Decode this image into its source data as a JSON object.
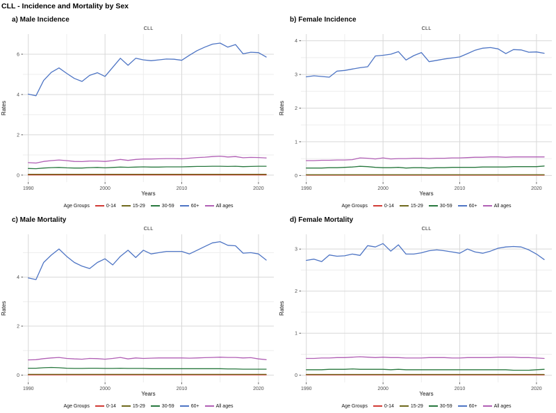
{
  "main_title": "CLL - Incidence and Mortality by Sex",
  "legend": {
    "title": "Age Groups",
    "items": [
      {
        "label": "0-14",
        "color": "#D13A34"
      },
      {
        "label": "15-29",
        "color": "#6E681C"
      },
      {
        "label": "30-59",
        "color": "#27773D"
      },
      {
        "label": "60+",
        "color": "#4D74C4"
      },
      {
        "label": "All ages",
        "color": "#B05EB4"
      }
    ]
  },
  "grid_colors": {
    "minor": "#EDEDED",
    "major": "#D8D8D8",
    "tick": "#333333"
  },
  "years": [
    1990,
    1991,
    1992,
    1993,
    1994,
    1995,
    1996,
    1997,
    1998,
    1999,
    2000,
    2001,
    2002,
    2003,
    2004,
    2005,
    2006,
    2007,
    2008,
    2009,
    2010,
    2011,
    2012,
    2013,
    2014,
    2015,
    2016,
    2017,
    2018,
    2019,
    2020,
    2021
  ],
  "chart_data": [
    {
      "type": "line",
      "panel_label": "a) Male Incidence",
      "title": "CLL",
      "xlabel": "Years",
      "ylabel": "Rates",
      "xlim": [
        1989.3,
        2022.0
      ],
      "ylim": [
        -0.35,
        7.0
      ],
      "xticks": [
        1990,
        2000,
        2010,
        2020
      ],
      "x_minor": [
        1995,
        2005,
        2015
      ],
      "yticks": [
        0,
        2,
        4,
        6
      ],
      "y_minor": [
        1,
        3,
        5
      ],
      "x": [
        1990,
        1991,
        1992,
        1993,
        1994,
        1995,
        1996,
        1997,
        1998,
        1999,
        2000,
        2001,
        2002,
        2003,
        2004,
        2005,
        2006,
        2007,
        2008,
        2009,
        2010,
        2011,
        2012,
        2013,
        2014,
        2015,
        2016,
        2017,
        2018,
        2019,
        2020,
        2021
      ],
      "series": [
        {
          "name": "0-14",
          "values": [
            0.01,
            0.01,
            0.01,
            0.01,
            0.01,
            0.01,
            0.01,
            0.01,
            0.01,
            0.01,
            0.01,
            0.01,
            0.01,
            0.01,
            0.01,
            0.01,
            0.01,
            0.01,
            0.01,
            0.01,
            0.01,
            0.01,
            0.01,
            0.01,
            0.01,
            0.01,
            0.01,
            0.01,
            0.01,
            0.01,
            0.01,
            0.01
          ]
        },
        {
          "name": "15-29",
          "values": [
            0.04,
            0.04,
            0.04,
            0.04,
            0.04,
            0.04,
            0.04,
            0.04,
            0.04,
            0.04,
            0.04,
            0.04,
            0.04,
            0.04,
            0.04,
            0.04,
            0.04,
            0.04,
            0.04,
            0.04,
            0.04,
            0.04,
            0.04,
            0.04,
            0.04,
            0.04,
            0.04,
            0.04,
            0.04,
            0.04,
            0.04,
            0.04
          ]
        },
        {
          "name": "30-59",
          "values": [
            0.33,
            0.32,
            0.35,
            0.37,
            0.38,
            0.36,
            0.35,
            0.35,
            0.37,
            0.38,
            0.36,
            0.38,
            0.4,
            0.39,
            0.4,
            0.41,
            0.4,
            0.4,
            0.41,
            0.41,
            0.41,
            0.42,
            0.43,
            0.43,
            0.44,
            0.44,
            0.43,
            0.44,
            0.42,
            0.43,
            0.44,
            0.44
          ]
        },
        {
          "name": "60+",
          "values": [
            4.02,
            3.94,
            4.7,
            5.1,
            5.32,
            5.05,
            4.8,
            4.65,
            4.95,
            5.08,
            4.9,
            5.35,
            5.8,
            5.45,
            5.8,
            5.72,
            5.68,
            5.72,
            5.76,
            5.75,
            5.7,
            5.95,
            6.18,
            6.35,
            6.5,
            6.55,
            6.35,
            6.48,
            6.02,
            6.1,
            6.08,
            5.86
          ]
        },
        {
          "name": "All ages",
          "values": [
            0.62,
            0.6,
            0.68,
            0.72,
            0.75,
            0.72,
            0.68,
            0.67,
            0.7,
            0.7,
            0.68,
            0.72,
            0.78,
            0.73,
            0.78,
            0.8,
            0.8,
            0.81,
            0.82,
            0.82,
            0.81,
            0.84,
            0.87,
            0.89,
            0.92,
            0.94,
            0.9,
            0.92,
            0.86,
            0.88,
            0.87,
            0.85
          ]
        }
      ]
    },
    {
      "type": "line",
      "panel_label": "b) Female Incidence",
      "title": "CLL",
      "xlabel": "Years",
      "ylabel": "Rates",
      "xlim": [
        1989.3,
        2022.0
      ],
      "ylim": [
        -0.2,
        4.2
      ],
      "xticks": [
        1990,
        2000,
        2010,
        2020
      ],
      "x_minor": [
        1995,
        2005,
        2015
      ],
      "yticks": [
        0,
        1,
        2,
        3,
        4
      ],
      "y_minor": [
        0.5,
        1.5,
        2.5,
        3.5
      ],
      "x": [
        1990,
        1991,
        1992,
        1993,
        1994,
        1995,
        1996,
        1997,
        1998,
        1999,
        2000,
        2001,
        2002,
        2003,
        2004,
        2005,
        2006,
        2007,
        2008,
        2009,
        2010,
        2011,
        2012,
        2013,
        2014,
        2015,
        2016,
        2017,
        2018,
        2019,
        2020,
        2021
      ],
      "series": [
        {
          "name": "0-14",
          "values": [
            0.01,
            0.01,
            0.01,
            0.01,
            0.01,
            0.01,
            0.01,
            0.01,
            0.01,
            0.01,
            0.01,
            0.01,
            0.01,
            0.01,
            0.01,
            0.01,
            0.01,
            0.01,
            0.01,
            0.01,
            0.01,
            0.01,
            0.01,
            0.01,
            0.01,
            0.01,
            0.01,
            0.01,
            0.01,
            0.01,
            0.01,
            0.01
          ]
        },
        {
          "name": "15-29",
          "values": [
            0.02,
            0.02,
            0.02,
            0.02,
            0.02,
            0.02,
            0.02,
            0.02,
            0.02,
            0.02,
            0.02,
            0.02,
            0.02,
            0.02,
            0.02,
            0.02,
            0.02,
            0.02,
            0.02,
            0.02,
            0.02,
            0.02,
            0.02,
            0.02,
            0.02,
            0.02,
            0.02,
            0.02,
            0.02,
            0.02,
            0.02,
            0.02
          ]
        },
        {
          "name": "30-59",
          "values": [
            0.22,
            0.22,
            0.22,
            0.23,
            0.23,
            0.24,
            0.25,
            0.27,
            0.26,
            0.24,
            0.23,
            0.23,
            0.24,
            0.22,
            0.23,
            0.23,
            0.22,
            0.23,
            0.23,
            0.24,
            0.24,
            0.24,
            0.24,
            0.25,
            0.25,
            0.25,
            0.25,
            0.26,
            0.26,
            0.26,
            0.26,
            0.28
          ]
        },
        {
          "name": "60+",
          "values": [
            2.93,
            2.96,
            2.94,
            2.92,
            3.1,
            3.12,
            3.16,
            3.2,
            3.23,
            3.55,
            3.57,
            3.6,
            3.68,
            3.43,
            3.56,
            3.65,
            3.38,
            3.42,
            3.46,
            3.49,
            3.52,
            3.62,
            3.72,
            3.78,
            3.8,
            3.76,
            3.62,
            3.74,
            3.73,
            3.66,
            3.67,
            3.63
          ]
        },
        {
          "name": "All ages",
          "values": [
            0.44,
            0.44,
            0.45,
            0.45,
            0.46,
            0.46,
            0.47,
            0.52,
            0.51,
            0.49,
            0.52,
            0.49,
            0.5,
            0.5,
            0.51,
            0.51,
            0.5,
            0.51,
            0.51,
            0.52,
            0.52,
            0.53,
            0.54,
            0.54,
            0.55,
            0.55,
            0.54,
            0.55,
            0.55,
            0.55,
            0.55,
            0.55
          ]
        }
      ]
    },
    {
      "type": "line",
      "panel_label": "c) Male Mortality",
      "title": "CLL",
      "xlabel": "Years",
      "ylabel": "Rates",
      "xlim": [
        1989.3,
        2022.0
      ],
      "ylim": [
        -0.3,
        5.75
      ],
      "xticks": [
        1990,
        2000,
        2010,
        2020
      ],
      "x_minor": [
        1995,
        2005,
        2015
      ],
      "yticks": [
        0,
        2,
        4
      ],
      "y_minor": [
        1,
        3,
        5
      ],
      "x": [
        1990,
        1991,
        1992,
        1993,
        1994,
        1995,
        1996,
        1997,
        1998,
        1999,
        2000,
        2001,
        2002,
        2003,
        2004,
        2005,
        2006,
        2007,
        2008,
        2009,
        2010,
        2011,
        2012,
        2013,
        2014,
        2015,
        2016,
        2017,
        2018,
        2019,
        2020,
        2021
      ],
      "series": [
        {
          "name": "0-14",
          "values": [
            0.01,
            0.01,
            0.01,
            0.01,
            0.01,
            0.01,
            0.01,
            0.01,
            0.01,
            0.01,
            0.01,
            0.01,
            0.01,
            0.01,
            0.01,
            0.01,
            0.01,
            0.01,
            0.01,
            0.01,
            0.01,
            0.01,
            0.01,
            0.01,
            0.01,
            0.01,
            0.01,
            0.01,
            0.01,
            0.01,
            0.01,
            0.01
          ]
        },
        {
          "name": "15-29",
          "values": [
            0.03,
            0.03,
            0.03,
            0.03,
            0.03,
            0.03,
            0.03,
            0.03,
            0.03,
            0.03,
            0.03,
            0.03,
            0.03,
            0.03,
            0.03,
            0.03,
            0.03,
            0.03,
            0.03,
            0.03,
            0.03,
            0.03,
            0.03,
            0.03,
            0.03,
            0.03,
            0.03,
            0.03,
            0.03,
            0.03,
            0.03,
            0.03
          ]
        },
        {
          "name": "30-59",
          "values": [
            0.28,
            0.28,
            0.3,
            0.31,
            0.3,
            0.28,
            0.27,
            0.27,
            0.28,
            0.28,
            0.27,
            0.27,
            0.28,
            0.27,
            0.27,
            0.27,
            0.26,
            0.26,
            0.26,
            0.26,
            0.26,
            0.26,
            0.26,
            0.26,
            0.26,
            0.26,
            0.25,
            0.25,
            0.24,
            0.24,
            0.24,
            0.24
          ]
        },
        {
          "name": "60+",
          "values": [
            3.97,
            3.9,
            4.6,
            4.9,
            5.15,
            4.85,
            4.6,
            4.45,
            4.35,
            4.6,
            4.75,
            4.5,
            4.85,
            5.1,
            4.8,
            5.1,
            4.95,
            5.0,
            5.05,
            5.05,
            5.05,
            4.95,
            5.1,
            5.25,
            5.4,
            5.45,
            5.3,
            5.28,
            4.98,
            5.0,
            4.95,
            4.7
          ]
        },
        {
          "name": "All ages",
          "values": [
            0.62,
            0.63,
            0.67,
            0.7,
            0.72,
            0.68,
            0.66,
            0.65,
            0.68,
            0.67,
            0.65,
            0.68,
            0.72,
            0.66,
            0.7,
            0.68,
            0.69,
            0.7,
            0.7,
            0.7,
            0.7,
            0.69,
            0.7,
            0.71,
            0.72,
            0.73,
            0.72,
            0.72,
            0.7,
            0.71,
            0.66,
            0.63
          ]
        }
      ]
    },
    {
      "type": "line",
      "panel_label": "d) Female Mortality",
      "title": "CLL",
      "xlabel": "Years",
      "ylabel": "Rates",
      "xlim": [
        1989.3,
        2022.0
      ],
      "ylim": [
        -0.17,
        3.35
      ],
      "xticks": [
        1990,
        2000,
        2010,
        2020
      ],
      "x_minor": [
        1995,
        2005,
        2015
      ],
      "yticks": [
        0,
        1,
        2,
        3
      ],
      "y_minor": [
        0.5,
        1.5,
        2.5
      ],
      "x": [
        1990,
        1991,
        1992,
        1993,
        1994,
        1995,
        1996,
        1997,
        1998,
        1999,
        2000,
        2001,
        2002,
        2003,
        2004,
        2005,
        2006,
        2007,
        2008,
        2009,
        2010,
        2011,
        2012,
        2013,
        2014,
        2015,
        2016,
        2017,
        2018,
        2019,
        2020,
        2021
      ],
      "series": [
        {
          "name": "0-14",
          "values": [
            0.01,
            0.01,
            0.01,
            0.01,
            0.01,
            0.01,
            0.01,
            0.01,
            0.01,
            0.01,
            0.01,
            0.01,
            0.01,
            0.01,
            0.01,
            0.01,
            0.01,
            0.01,
            0.01,
            0.01,
            0.01,
            0.01,
            0.01,
            0.01,
            0.01,
            0.01,
            0.01,
            0.01,
            0.01,
            0.01,
            0.01,
            0.01
          ]
        },
        {
          "name": "15-29",
          "values": [
            0.02,
            0.02,
            0.02,
            0.02,
            0.02,
            0.02,
            0.02,
            0.02,
            0.02,
            0.02,
            0.02,
            0.02,
            0.02,
            0.02,
            0.02,
            0.02,
            0.02,
            0.02,
            0.02,
            0.02,
            0.02,
            0.02,
            0.02,
            0.02,
            0.02,
            0.02,
            0.02,
            0.02,
            0.02,
            0.02,
            0.02,
            0.02
          ]
        },
        {
          "name": "30-59",
          "values": [
            0.13,
            0.13,
            0.13,
            0.14,
            0.14,
            0.14,
            0.15,
            0.14,
            0.14,
            0.14,
            0.14,
            0.13,
            0.14,
            0.13,
            0.13,
            0.13,
            0.13,
            0.13,
            0.13,
            0.13,
            0.13,
            0.13,
            0.13,
            0.13,
            0.13,
            0.13,
            0.13,
            0.12,
            0.12,
            0.12,
            0.13,
            0.14
          ]
        },
        {
          "name": "60+",
          "values": [
            2.73,
            2.76,
            2.7,
            2.86,
            2.83,
            2.84,
            2.88,
            2.85,
            3.08,
            3.05,
            3.13,
            2.95,
            3.1,
            2.88,
            2.88,
            2.91,
            2.96,
            2.98,
            2.96,
            2.93,
            2.9,
            3.0,
            2.93,
            2.9,
            2.95,
            3.02,
            3.05,
            3.06,
            3.05,
            2.98,
            2.88,
            2.75
          ]
        },
        {
          "name": "All ages",
          "values": [
            0.4,
            0.4,
            0.41,
            0.41,
            0.42,
            0.42,
            0.43,
            0.44,
            0.43,
            0.42,
            0.43,
            0.42,
            0.42,
            0.41,
            0.41,
            0.41,
            0.42,
            0.42,
            0.42,
            0.41,
            0.41,
            0.42,
            0.42,
            0.42,
            0.42,
            0.43,
            0.43,
            0.43,
            0.42,
            0.42,
            0.41,
            0.4
          ]
        }
      ]
    }
  ]
}
